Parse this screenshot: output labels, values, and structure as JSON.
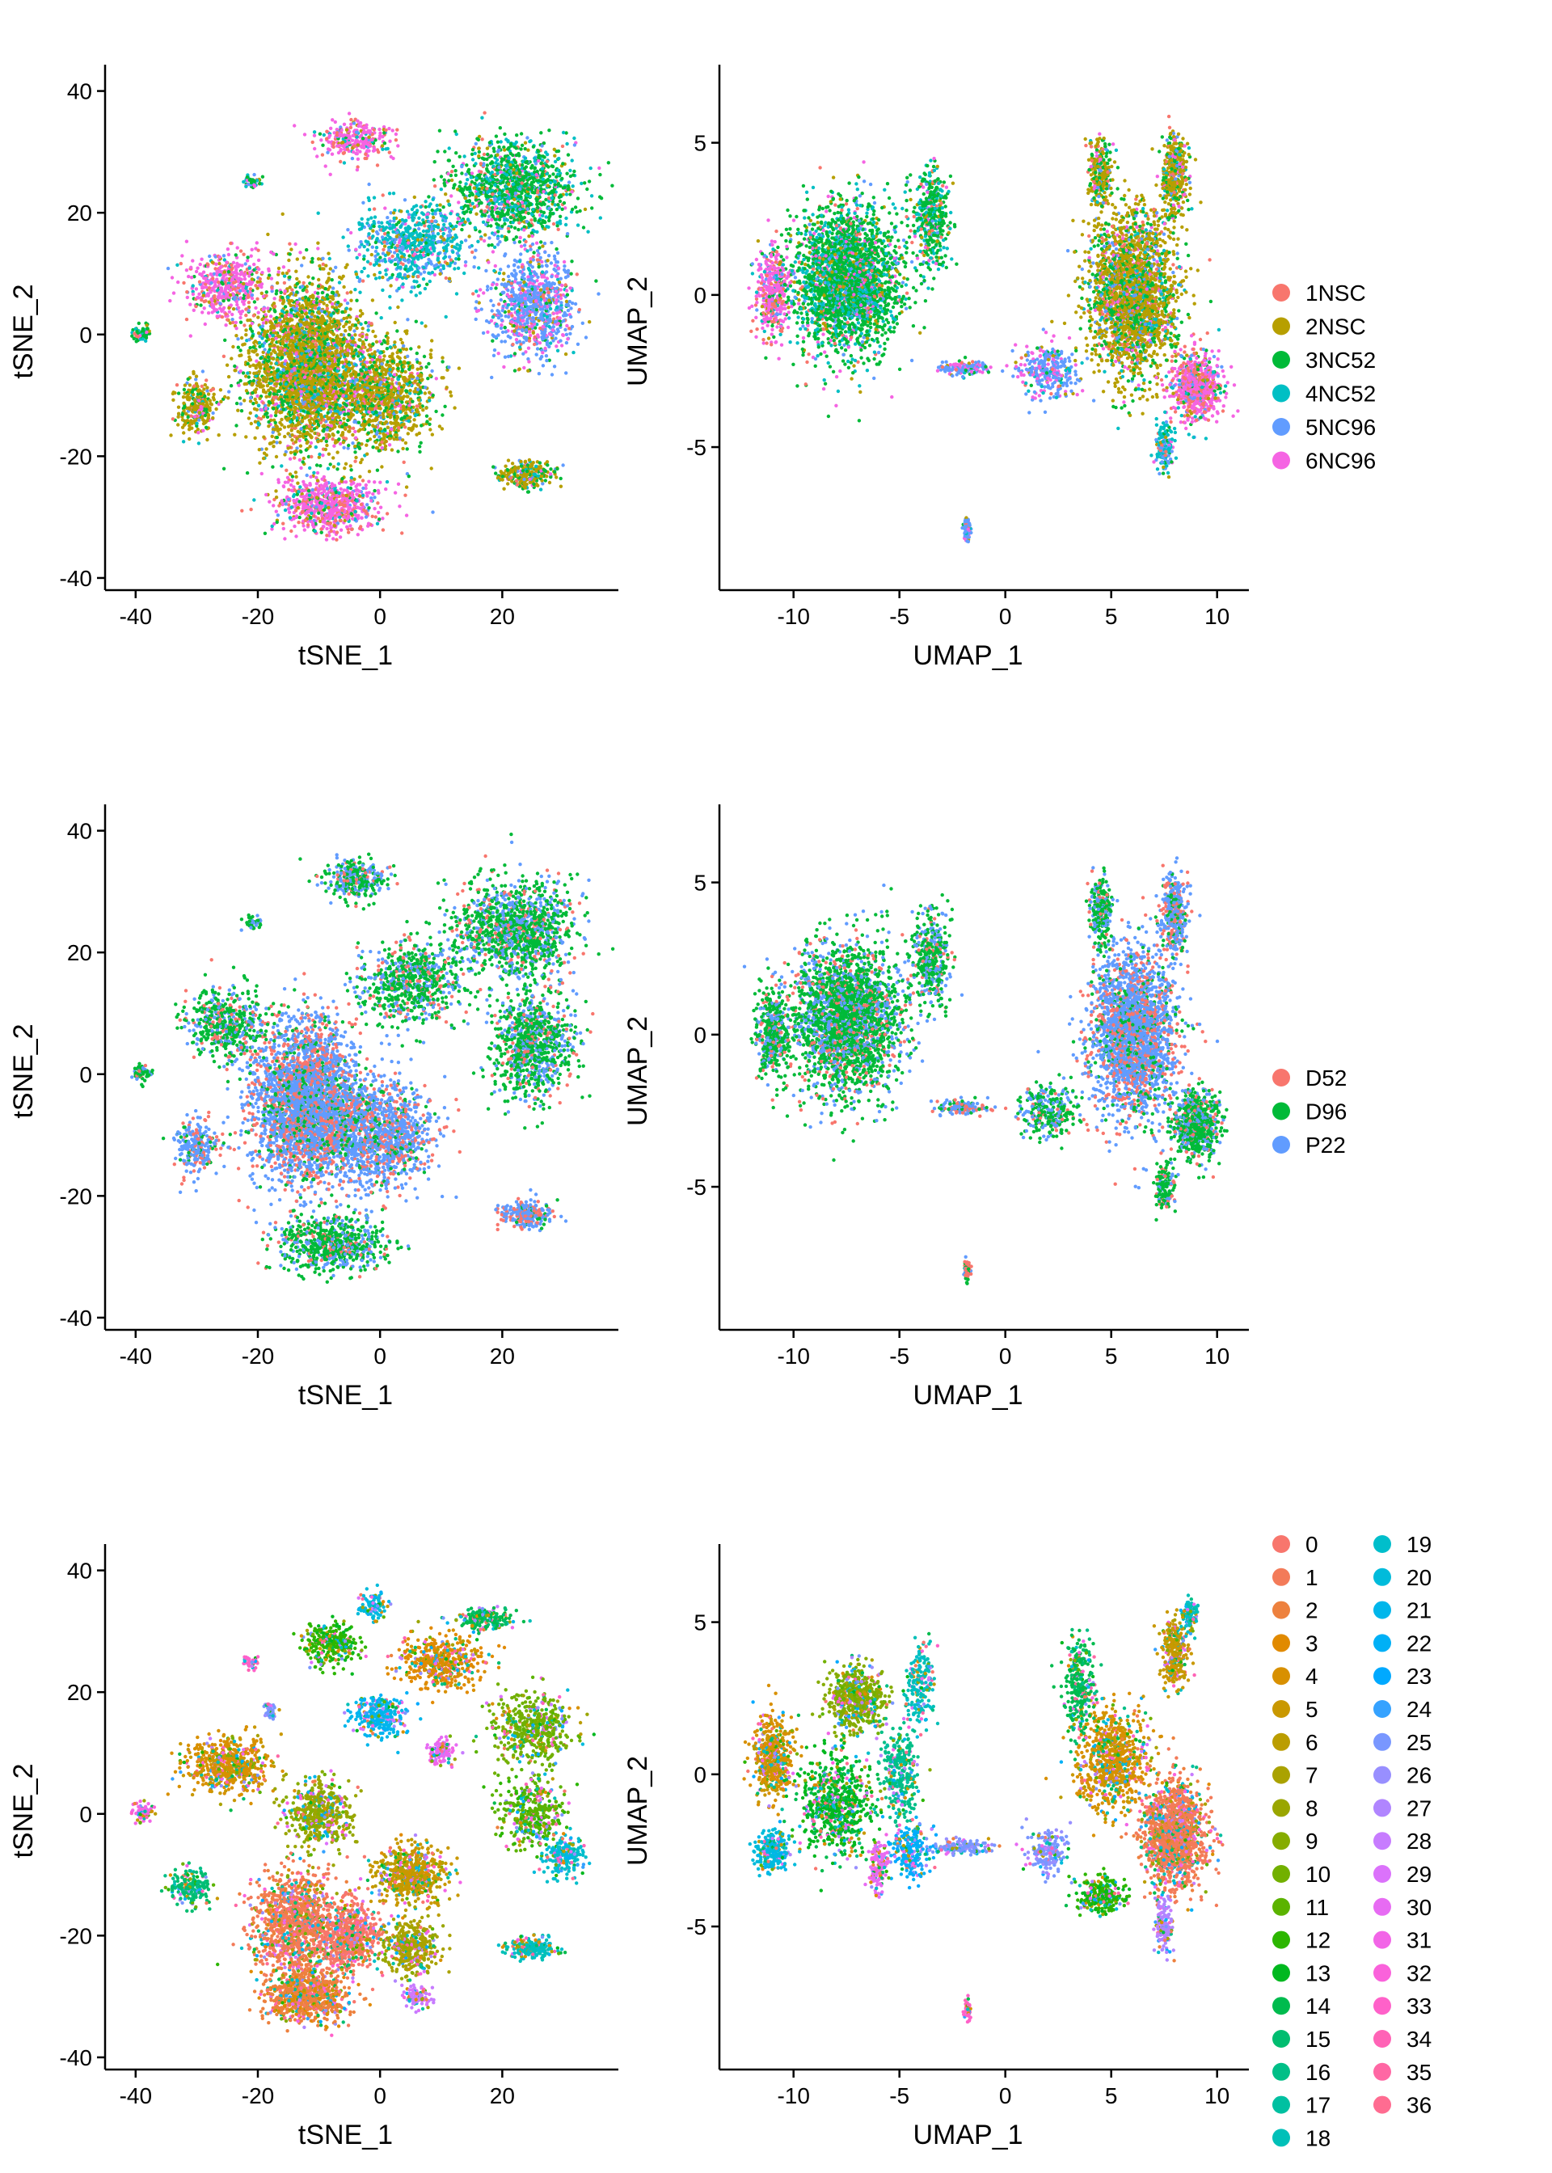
{
  "rows": [
    {
      "legend": [
        {
          "label": "1NSC",
          "color": "#F8766D"
        },
        {
          "label": "2NSC",
          "color": "#B79F00"
        },
        {
          "label": "3NC52",
          "color": "#00BA38"
        },
        {
          "label": "4NC52",
          "color": "#00BFC4"
        },
        {
          "label": "5NC96",
          "color": "#619CFF"
        },
        {
          "label": "6NC96",
          "color": "#F564E3"
        }
      ]
    },
    {
      "legend": [
        {
          "label": "D52",
          "color": "#F8766D"
        },
        {
          "label": "D96",
          "color": "#00BA38"
        },
        {
          "label": "P22",
          "color": "#619CFF"
        }
      ]
    },
    {
      "legend": [
        {
          "label": "0",
          "color": "#F8766D"
        },
        {
          "label": "1",
          "color": "#F37B59"
        },
        {
          "label": "2",
          "color": "#ED813E"
        },
        {
          "label": "3",
          "color": "#E18A00"
        },
        {
          "label": "4",
          "color": "#D89000"
        },
        {
          "label": "5",
          "color": "#C99800"
        },
        {
          "label": "6",
          "color": "#BB9D00"
        },
        {
          "label": "7",
          "color": "#AAA200"
        },
        {
          "label": "8",
          "color": "#9AA600"
        },
        {
          "label": "9",
          "color": "#86AC00"
        },
        {
          "label": "10",
          "color": "#72B000"
        },
        {
          "label": "11",
          "color": "#5BB300"
        },
        {
          "label": "12",
          "color": "#2CB600"
        },
        {
          "label": "13",
          "color": "#00B81F"
        },
        {
          "label": "14",
          "color": "#00BB4E"
        },
        {
          "label": "15",
          "color": "#00BD70"
        },
        {
          "label": "16",
          "color": "#00BF87"
        },
        {
          "label": "17",
          "color": "#00C0A1"
        },
        {
          "label": "18",
          "color": "#00C0B8"
        },
        {
          "label": "19",
          "color": "#00BECB"
        },
        {
          "label": "20",
          "color": "#00BBDB"
        },
        {
          "label": "21",
          "color": "#00B6EB"
        },
        {
          "label": "22",
          "color": "#00B0F6"
        },
        {
          "label": "23",
          "color": "#00A9FF"
        },
        {
          "label": "24",
          "color": "#35A2FF"
        },
        {
          "label": "25",
          "color": "#7997FF"
        },
        {
          "label": "26",
          "color": "#988FFF"
        },
        {
          "label": "27",
          "color": "#B085FF"
        },
        {
          "label": "28",
          "color": "#C77CFF"
        },
        {
          "label": "29",
          "color": "#DB72FB"
        },
        {
          "label": "30",
          "color": "#E76BF3"
        },
        {
          "label": "31",
          "color": "#F265E7"
        },
        {
          "label": "32",
          "color": "#FA62DB"
        },
        {
          "label": "33",
          "color": "#FF61C9"
        },
        {
          "label": "34",
          "color": "#FF63B6"
        },
        {
          "label": "35",
          "color": "#FF67A4"
        },
        {
          "label": "36",
          "color": "#FF6C91"
        }
      ]
    }
  ],
  "chart_data": [
    {
      "type": "scatter",
      "panel": "tsne",
      "row": 1,
      "xlabel": "tSNE_1",
      "ylabel": "tSNE_2",
      "xlim": [
        -45,
        39
      ],
      "ylim": [
        -42,
        43
      ],
      "xticks": [
        "-40",
        "-20",
        "0",
        "20"
      ],
      "yticks": [
        "40",
        "20",
        "0",
        "-20",
        "-40"
      ],
      "color_by": "sample",
      "point_count_note": "dense cell clouds",
      "clusters": [
        {
          "x": -12,
          "y": -5,
          "sx": 8,
          "sy": 12,
          "n": 3000,
          "group": 1
        },
        {
          "x": 0,
          "y": -10,
          "sx": 8,
          "sy": 8,
          "n": 1200,
          "group": 1
        },
        {
          "x": -8,
          "y": -28,
          "sx": 8,
          "sy": 4,
          "n": 700,
          "group": 5
        },
        {
          "x": 22,
          "y": 24,
          "sx": 9,
          "sy": 7,
          "n": 1200,
          "group": 2
        },
        {
          "x": 25,
          "y": 5,
          "sx": 6,
          "sy": 8,
          "n": 900,
          "group": 4
        },
        {
          "x": 5,
          "y": 15,
          "sx": 8,
          "sy": 6,
          "n": 700,
          "group": 3
        },
        {
          "x": -25,
          "y": 8,
          "sx": 6,
          "sy": 5,
          "n": 500,
          "group": 5
        },
        {
          "x": -30,
          "y": -12,
          "sx": 3,
          "sy": 4,
          "n": 250,
          "group": 1
        },
        {
          "x": 24,
          "y": -23,
          "sx": 4,
          "sy": 2,
          "n": 250,
          "group": 1
        },
        {
          "x": -4,
          "y": 32,
          "sx": 5,
          "sy": 3,
          "n": 300,
          "group": 5
        },
        {
          "x": -39,
          "y": 0,
          "sx": 1.5,
          "sy": 1.5,
          "n": 60,
          "group": 2
        },
        {
          "x": -21,
          "y": 25,
          "sx": 1.5,
          "sy": 1.0,
          "n": 40,
          "group": 2
        }
      ]
    },
    {
      "type": "scatter",
      "panel": "umap",
      "row": 1,
      "xlabel": "UMAP_1",
      "ylabel": "UMAP_2",
      "xlim": [
        -13.5,
        11.5
      ],
      "ylim": [
        -9.7,
        7.3
      ],
      "xticks": [
        "-10",
        "-5",
        "0",
        "5",
        "10"
      ],
      "yticks": [
        "5",
        "0",
        "-5"
      ],
      "color_by": "sample",
      "clusters": [
        {
          "x": -7.5,
          "y": 0.5,
          "sx": 2.3,
          "sy": 2.2,
          "n": 2600,
          "group": 2
        },
        {
          "x": -11,
          "y": 0,
          "sx": 0.7,
          "sy": 1.3,
          "n": 400,
          "group": 5
        },
        {
          "x": -3.5,
          "y": 2.5,
          "sx": 0.8,
          "sy": 1.5,
          "n": 400,
          "group": 2
        },
        {
          "x": 6,
          "y": 0,
          "sx": 1.8,
          "sy": 2.4,
          "n": 2400,
          "group": 1
        },
        {
          "x": 8,
          "y": 4,
          "sx": 0.6,
          "sy": 1.2,
          "n": 400,
          "group": 1
        },
        {
          "x": 9,
          "y": -3,
          "sx": 1.0,
          "sy": 1.0,
          "n": 700,
          "group": 5
        },
        {
          "x": 2,
          "y": -2.5,
          "sx": 1.2,
          "sy": 0.8,
          "n": 300,
          "group": 4
        },
        {
          "x": 4.5,
          "y": 4,
          "sx": 0.5,
          "sy": 1.0,
          "n": 250,
          "group": 1
        },
        {
          "x": 7.5,
          "y": -5,
          "sx": 0.4,
          "sy": 0.8,
          "n": 150,
          "group": 3
        },
        {
          "x": -2,
          "y": -2.4,
          "sx": 1.1,
          "sy": 0.2,
          "n": 150,
          "group": 4
        },
        {
          "x": -1.8,
          "y": -7.7,
          "sx": 0.15,
          "sy": 0.35,
          "n": 60,
          "group": 4
        }
      ]
    },
    {
      "type": "scatter",
      "panel": "tsne",
      "row": 2,
      "xlabel": "tSNE_1",
      "ylabel": "tSNE_2",
      "xlim": [
        -45,
        39
      ],
      "ylim": [
        -42,
        43
      ],
      "xticks": [
        "-40",
        "-20",
        "0",
        "20"
      ],
      "yticks": [
        "40",
        "20",
        "0",
        "-20",
        "-40"
      ],
      "color_by": "timepoint",
      "clusters": [
        {
          "x": -12,
          "y": -5,
          "sx": 8,
          "sy": 12,
          "n": 3000,
          "group": 2
        },
        {
          "x": 0,
          "y": -10,
          "sx": 8,
          "sy": 8,
          "n": 1200,
          "group": 2
        },
        {
          "x": -8,
          "y": -28,
          "sx": 8,
          "sy": 4,
          "n": 700,
          "group": 1
        },
        {
          "x": 22,
          "y": 24,
          "sx": 9,
          "sy": 7,
          "n": 1200,
          "group": 1
        },
        {
          "x": 25,
          "y": 5,
          "sx": 6,
          "sy": 8,
          "n": 900,
          "group": 1
        },
        {
          "x": 5,
          "y": 15,
          "sx": 8,
          "sy": 6,
          "n": 700,
          "group": 1
        },
        {
          "x": -25,
          "y": 8,
          "sx": 6,
          "sy": 5,
          "n": 500,
          "group": 1
        },
        {
          "x": -30,
          "y": -12,
          "sx": 3,
          "sy": 4,
          "n": 250,
          "group": 2
        },
        {
          "x": 24,
          "y": -23,
          "sx": 4,
          "sy": 2,
          "n": 250,
          "group": 2
        },
        {
          "x": -4,
          "y": 32,
          "sx": 5,
          "sy": 3,
          "n": 300,
          "group": 1
        },
        {
          "x": -39,
          "y": 0,
          "sx": 1.5,
          "sy": 1.5,
          "n": 60,
          "group": 1
        },
        {
          "x": -21,
          "y": 25,
          "sx": 1.5,
          "sy": 1.0,
          "n": 40,
          "group": 1
        }
      ]
    },
    {
      "type": "scatter",
      "panel": "umap",
      "row": 2,
      "xlabel": "UMAP_1",
      "ylabel": "UMAP_2",
      "xlim": [
        -13.5,
        11.5
      ],
      "ylim": [
        -9.7,
        7.3
      ],
      "xticks": [
        "-10",
        "-5",
        "0",
        "5",
        "10"
      ],
      "yticks": [
        "5",
        "0",
        "-5"
      ],
      "color_by": "timepoint",
      "clusters": [
        {
          "x": -7.5,
          "y": 0.5,
          "sx": 2.3,
          "sy": 2.2,
          "n": 2600,
          "group": 1
        },
        {
          "x": -11,
          "y": 0,
          "sx": 0.7,
          "sy": 1.3,
          "n": 400,
          "group": 1
        },
        {
          "x": -3.5,
          "y": 2.5,
          "sx": 0.8,
          "sy": 1.5,
          "n": 400,
          "group": 1
        },
        {
          "x": 6,
          "y": 0,
          "sx": 1.8,
          "sy": 2.4,
          "n": 2400,
          "group": 2
        },
        {
          "x": 8,
          "y": 4,
          "sx": 0.6,
          "sy": 1.2,
          "n": 400,
          "group": 2
        },
        {
          "x": 9,
          "y": -3,
          "sx": 1.0,
          "sy": 1.0,
          "n": 700,
          "group": 1
        },
        {
          "x": 2,
          "y": -2.5,
          "sx": 1.2,
          "sy": 0.8,
          "n": 300,
          "group": 1
        },
        {
          "x": 4.5,
          "y": 4,
          "sx": 0.5,
          "sy": 1.0,
          "n": 250,
          "group": 1
        },
        {
          "x": 7.5,
          "y": -5,
          "sx": 0.4,
          "sy": 0.8,
          "n": 150,
          "group": 1
        },
        {
          "x": -2,
          "y": -2.4,
          "sx": 1.1,
          "sy": 0.2,
          "n": 150,
          "group": 2
        },
        {
          "x": -1.8,
          "y": -7.7,
          "sx": 0.15,
          "sy": 0.35,
          "n": 60,
          "group": 0
        }
      ]
    },
    {
      "type": "scatter",
      "panel": "tsne",
      "row": 3,
      "xlabel": "tSNE_1",
      "ylabel": "tSNE_2",
      "xlim": [
        -45,
        39
      ],
      "ylim": [
        -42,
        43
      ],
      "xticks": [
        "-40",
        "-20",
        "0",
        "20"
      ],
      "yticks": [
        "40",
        "20",
        "0",
        "-20",
        "-40"
      ],
      "color_by": "cluster",
      "clusters": [
        {
          "x": -14,
          "y": -18,
          "sx": 6,
          "sy": 8,
          "n": 1200,
          "group": 1
        },
        {
          "x": -12,
          "y": -30,
          "sx": 6,
          "sy": 4,
          "n": 800,
          "group": 2
        },
        {
          "x": -5,
          "y": -20,
          "sx": 4,
          "sy": 5,
          "n": 600,
          "group": 0
        },
        {
          "x": 5,
          "y": -10,
          "sx": 5,
          "sy": 4,
          "n": 600,
          "group": 5
        },
        {
          "x": 5,
          "y": -22,
          "sx": 4,
          "sy": 4,
          "n": 400,
          "group": 7
        },
        {
          "x": -25,
          "y": 8,
          "sx": 6,
          "sy": 4,
          "n": 600,
          "group": 4
        },
        {
          "x": -10,
          "y": 0,
          "sx": 5,
          "sy": 5,
          "n": 500,
          "group": 8
        },
        {
          "x": 10,
          "y": 25,
          "sx": 6,
          "sy": 4,
          "n": 500,
          "group": 3
        },
        {
          "x": 25,
          "y": 14,
          "sx": 6,
          "sy": 5,
          "n": 500,
          "group": 10
        },
        {
          "x": 25,
          "y": 0,
          "sx": 5,
          "sy": 5,
          "n": 400,
          "group": 11
        },
        {
          "x": -8,
          "y": 28,
          "sx": 4,
          "sy": 3,
          "n": 300,
          "group": 12
        },
        {
          "x": 17,
          "y": 32,
          "sx": 4,
          "sy": 1.5,
          "n": 200,
          "group": 14
        },
        {
          "x": 0,
          "y": 16,
          "sx": 4,
          "sy": 3,
          "n": 300,
          "group": 21
        },
        {
          "x": 30,
          "y": -7,
          "sx": 3,
          "sy": 3,
          "n": 200,
          "group": 19
        },
        {
          "x": 25,
          "y": -22,
          "sx": 4,
          "sy": 1.5,
          "n": 200,
          "group": 18
        },
        {
          "x": -31,
          "y": -12,
          "sx": 3,
          "sy": 3,
          "n": 200,
          "group": 15
        },
        {
          "x": -1,
          "y": 34,
          "sx": 2,
          "sy": 2,
          "n": 100,
          "group": 20
        },
        {
          "x": 10,
          "y": 10,
          "sx": 2,
          "sy": 2,
          "n": 120,
          "group": 30
        },
        {
          "x": 6,
          "y": -30,
          "sx": 2,
          "sy": 1.5,
          "n": 100,
          "group": 28
        },
        {
          "x": -39,
          "y": 0,
          "sx": 1.5,
          "sy": 1.5,
          "n": 60,
          "group": 31
        },
        {
          "x": -21,
          "y": 25,
          "sx": 1.5,
          "sy": 1.0,
          "n": 40,
          "group": 33
        },
        {
          "x": -18,
          "y": 17,
          "sx": 1,
          "sy": 1.5,
          "n": 40,
          "group": 25
        }
      ]
    },
    {
      "type": "scatter",
      "panel": "umap",
      "row": 3,
      "xlabel": "UMAP_1",
      "ylabel": "UMAP_2",
      "xlim": [
        -13.5,
        11.5
      ],
      "ylim": [
        -9.7,
        7.3
      ],
      "xticks": [
        "-10",
        "-5",
        "0",
        "5",
        "10"
      ],
      "yticks": [
        "5",
        "0",
        "-5"
      ],
      "color_by": "cluster",
      "clusters": [
        {
          "x": -11,
          "y": 0.5,
          "sx": 0.8,
          "sy": 1.2,
          "n": 500,
          "group": 4
        },
        {
          "x": -7,
          "y": 2.5,
          "sx": 1.2,
          "sy": 1.0,
          "n": 600,
          "group": 9
        },
        {
          "x": -8,
          "y": -1,
          "sx": 1.5,
          "sy": 1.5,
          "n": 700,
          "group": 13
        },
        {
          "x": -11,
          "y": -2.5,
          "sx": 0.7,
          "sy": 0.6,
          "n": 250,
          "group": 20
        },
        {
          "x": -5,
          "y": 0,
          "sx": 0.8,
          "sy": 1.5,
          "n": 300,
          "group": 16
        },
        {
          "x": -4,
          "y": 3,
          "sx": 0.6,
          "sy": 1.2,
          "n": 200,
          "group": 18
        },
        {
          "x": -4.5,
          "y": -2.5,
          "sx": 0.8,
          "sy": 0.8,
          "n": 250,
          "group": 22
        },
        {
          "x": -6,
          "y": -3,
          "sx": 0.4,
          "sy": 0.8,
          "n": 150,
          "group": 30
        },
        {
          "x": 8,
          "y": -2,
          "sx": 1.3,
          "sy": 1.5,
          "n": 1500,
          "group": 1
        },
        {
          "x": 5,
          "y": 0.5,
          "sx": 1.5,
          "sy": 1.5,
          "n": 800,
          "group": 4
        },
        {
          "x": 3.5,
          "y": 3,
          "sx": 0.6,
          "sy": 1.5,
          "n": 300,
          "group": 14
        },
        {
          "x": 8,
          "y": 4,
          "sx": 0.6,
          "sy": 1.0,
          "n": 300,
          "group": 5
        },
        {
          "x": 8.7,
          "y": 5.3,
          "sx": 0.3,
          "sy": 0.5,
          "n": 100,
          "group": 18
        },
        {
          "x": 4.5,
          "y": -4,
          "sx": 1.0,
          "sy": 0.5,
          "n": 300,
          "group": 12
        },
        {
          "x": 7.5,
          "y": -5,
          "sx": 0.4,
          "sy": 0.8,
          "n": 150,
          "group": 27
        },
        {
          "x": 2,
          "y": -2.5,
          "sx": 0.8,
          "sy": 0.6,
          "n": 200,
          "group": 25
        },
        {
          "x": -2,
          "y": -2.4,
          "sx": 1.1,
          "sy": 0.2,
          "n": 150,
          "group": 25
        },
        {
          "x": -1.8,
          "y": -7.7,
          "sx": 0.15,
          "sy": 0.35,
          "n": 60,
          "group": 33
        }
      ]
    }
  ]
}
